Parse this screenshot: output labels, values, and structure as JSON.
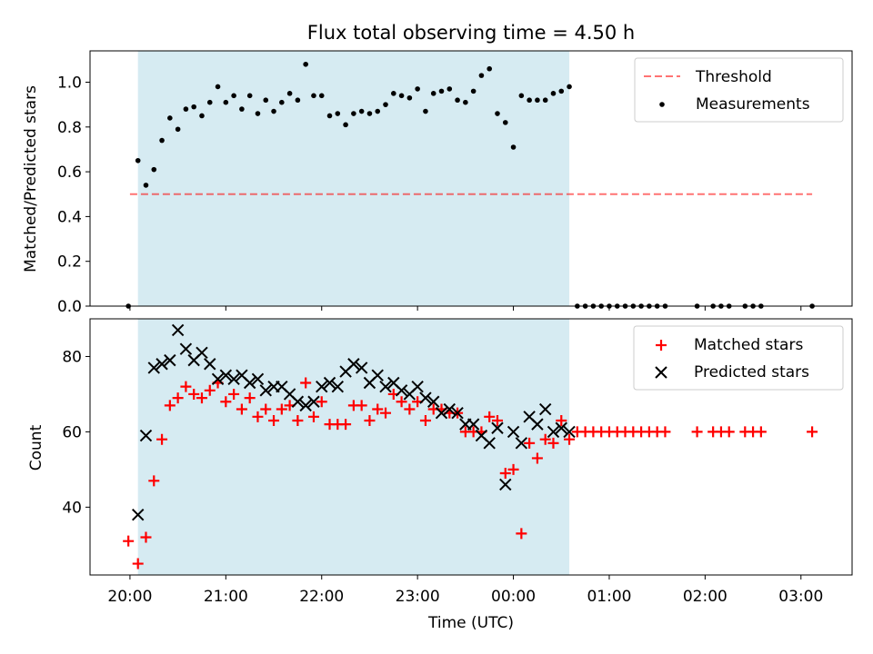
{
  "title": "Flux total observing time = 4.50 h",
  "colors": {
    "observing_span": "#add8e6",
    "threshold": "#ff0000",
    "measurements": "#000000",
    "matched": "#ff0000",
    "predicted": "#000000"
  },
  "chart_data": [
    {
      "type": "scatter",
      "panel": "top",
      "ylabel": "Matched/Predicted stars",
      "ylim": [
        0,
        1.14
      ],
      "yticks": [
        "0.0",
        "0.2",
        "0.4",
        "0.6",
        "0.8",
        "1.0"
      ],
      "ytick_values": [
        0,
        0.2,
        0.4,
        0.6,
        0.8,
        1.0
      ],
      "x_axis": "time (UTC), shared with bottom panel, no tick labels shown",
      "observing_span": [
        "20:05",
        "00:35"
      ],
      "threshold": {
        "name": "Threshold",
        "value": 0.5,
        "x_range": [
          "20:00",
          "03:07"
        ],
        "style": "dashed"
      },
      "series": [
        {
          "name": "Measurements",
          "x": [
            "19:59",
            "20:05",
            "20:10",
            "20:15",
            "20:20",
            "20:25",
            "20:30",
            "20:35",
            "20:40",
            "20:45",
            "20:50",
            "20:55",
            "21:00",
            "21:05",
            "21:10",
            "21:15",
            "21:20",
            "21:25",
            "21:30",
            "21:35",
            "21:40",
            "21:45",
            "21:50",
            "21:55",
            "22:00",
            "22:05",
            "22:10",
            "22:15",
            "22:20",
            "22:25",
            "22:30",
            "22:35",
            "22:40",
            "22:45",
            "22:50",
            "22:55",
            "23:00",
            "23:05",
            "23:10",
            "23:15",
            "23:20",
            "23:25",
            "23:30",
            "23:35",
            "23:40",
            "23:45",
            "23:50",
            "23:55",
            "00:00",
            "00:05",
            "00:10",
            "00:15",
            "00:20",
            "00:25",
            "00:30",
            "00:35",
            "00:40",
            "00:45",
            "00:50",
            "00:55",
            "01:00",
            "01:05",
            "01:10",
            "01:15",
            "01:20",
            "01:25",
            "01:30",
            "01:35",
            "01:55",
            "02:05",
            "02:10",
            "02:15",
            "02:25",
            "02:30",
            "02:35",
            "03:07"
          ],
          "y": [
            0.0,
            0.65,
            0.54,
            0.61,
            0.74,
            0.84,
            0.79,
            0.88,
            0.89,
            0.85,
            0.91,
            0.98,
            0.91,
            0.94,
            0.88,
            0.94,
            0.86,
            0.92,
            0.87,
            0.91,
            0.95,
            0.92,
            1.08,
            0.94,
            0.94,
            0.85,
            0.86,
            0.81,
            0.86,
            0.87,
            0.86,
            0.87,
            0.9,
            0.95,
            0.94,
            0.93,
            0.97,
            0.87,
            0.95,
            0.96,
            0.97,
            0.92,
            0.91,
            0.96,
            1.03,
            1.06,
            0.86,
            0.82,
            0.71,
            0.94,
            0.92,
            0.92,
            0.92,
            0.95,
            0.96,
            0.98,
            0.0,
            0.0,
            0.0,
            0.0,
            0.0,
            0.0,
            0.0,
            0.0,
            0.0,
            0.0,
            0.0,
            0.0,
            0.0,
            0.0,
            0.0,
            0.0,
            0.0,
            0.0,
            0.0,
            0.0
          ]
        }
      ]
    },
    {
      "type": "scatter",
      "panel": "bottom",
      "xlabel": "Time (UTC)",
      "ylabel": "Count",
      "ylim": [
        22,
        90
      ],
      "yticks": [
        "40",
        "60",
        "80"
      ],
      "ytick_values": [
        40,
        60,
        80
      ],
      "xlim": [
        "19:35",
        "03:32"
      ],
      "xticks": [
        "20:00",
        "21:00",
        "22:00",
        "23:00",
        "00:00",
        "01:00",
        "02:00",
        "03:00"
      ],
      "observing_span": [
        "20:05",
        "00:35"
      ],
      "series": [
        {
          "name": "Matched stars",
          "marker": "plus",
          "x": [
            "19:59",
            "20:05",
            "20:10",
            "20:15",
            "20:20",
            "20:25",
            "20:30",
            "20:35",
            "20:40",
            "20:45",
            "20:50",
            "20:55",
            "21:00",
            "21:05",
            "21:10",
            "21:15",
            "21:20",
            "21:25",
            "21:30",
            "21:35",
            "21:40",
            "21:45",
            "21:50",
            "21:55",
            "22:00",
            "22:05",
            "22:10",
            "22:15",
            "22:20",
            "22:25",
            "22:30",
            "22:35",
            "22:40",
            "22:45",
            "22:50",
            "22:55",
            "23:00",
            "23:05",
            "23:10",
            "23:15",
            "23:20",
            "23:25",
            "23:30",
            "23:35",
            "23:40",
            "23:45",
            "23:50",
            "23:55",
            "00:00",
            "00:05",
            "00:10",
            "00:15",
            "00:20",
            "00:25",
            "00:30",
            "00:35",
            "00:40",
            "00:45",
            "00:50",
            "00:55",
            "01:00",
            "01:05",
            "01:10",
            "01:15",
            "01:20",
            "01:25",
            "01:30",
            "01:35",
            "01:55",
            "02:05",
            "02:10",
            "02:15",
            "02:25",
            "02:30",
            "02:35",
            "03:07"
          ],
          "y": [
            31,
            25,
            32,
            47,
            58,
            67,
            69,
            72,
            70,
            69,
            71,
            73,
            68,
            70,
            66,
            69,
            64,
            66,
            63,
            66,
            67,
            63,
            73,
            64,
            68,
            62,
            62,
            62,
            67,
            67,
            63,
            66,
            65,
            70,
            68,
            66,
            68,
            63,
            66,
            66,
            65,
            65,
            60,
            60,
            60,
            64,
            63,
            49,
            50,
            33,
            57,
            53,
            58,
            57,
            63,
            58,
            60,
            60,
            60,
            60,
            60,
            60,
            60,
            60,
            60,
            60,
            60,
            60,
            60,
            60,
            60,
            60,
            60,
            60,
            60,
            60
          ]
        },
        {
          "name": "Predicted stars",
          "marker": "x",
          "x": [
            "20:05",
            "20:10",
            "20:15",
            "20:20",
            "20:25",
            "20:30",
            "20:35",
            "20:40",
            "20:45",
            "20:50",
            "20:55",
            "21:00",
            "21:05",
            "21:10",
            "21:15",
            "21:20",
            "21:25",
            "21:30",
            "21:35",
            "21:40",
            "21:45",
            "21:50",
            "21:55",
            "22:00",
            "22:05",
            "22:10",
            "22:15",
            "22:20",
            "22:25",
            "22:30",
            "22:35",
            "22:40",
            "22:45",
            "22:50",
            "22:55",
            "23:00",
            "23:05",
            "23:10",
            "23:15",
            "23:20",
            "23:25",
            "23:30",
            "23:35",
            "23:40",
            "23:45",
            "23:50",
            "23:55",
            "00:00",
            "00:05",
            "00:10",
            "00:15",
            "00:20",
            "00:25",
            "00:30",
            "00:35"
          ],
          "y": [
            38,
            59,
            77,
            78,
            79,
            87,
            82,
            79,
            81,
            78,
            74,
            75,
            74,
            75,
            73,
            74,
            71,
            72,
            72,
            70,
            68,
            67,
            68,
            72,
            73,
            72,
            76,
            78,
            77,
            73,
            75,
            72,
            73,
            71,
            70,
            72,
            69,
            68,
            65,
            66,
            65,
            62,
            62,
            59,
            57,
            61,
            46,
            60,
            57,
            64,
            62,
            66,
            60,
            61,
            60
          ]
        }
      ]
    }
  ]
}
